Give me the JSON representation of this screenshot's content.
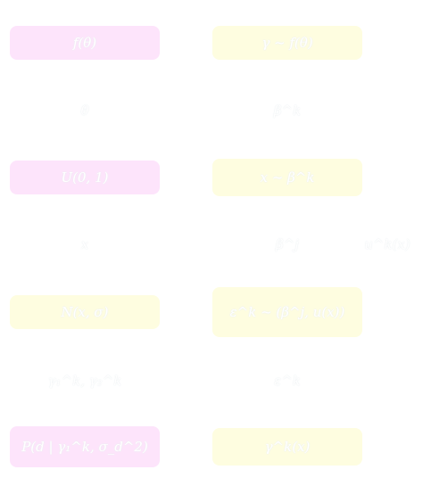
{
  "nodes": [
    {
      "id": "f-theta",
      "text": "f(θ)",
      "fill": "pink"
    },
    {
      "id": "gamma-f-theta",
      "text": "γ ~ f(θ)",
      "fill": "yellow"
    },
    {
      "id": "theta",
      "text": "θ",
      "fill": "none"
    },
    {
      "id": "beta-k",
      "text": "β^k",
      "fill": "none"
    },
    {
      "id": "uniform",
      "text": "U(0, 1)",
      "fill": "pink"
    },
    {
      "id": "x-beta-k",
      "text": "x ~ β^k",
      "fill": "yellow"
    },
    {
      "id": "x",
      "text": "x",
      "fill": "none"
    },
    {
      "id": "beta-j",
      "text": "β^j",
      "fill": "none"
    },
    {
      "id": "u-k-x",
      "text": "u^k(x)",
      "fill": "none"
    },
    {
      "id": "n-x-sigma",
      "text": "N(x, σ)",
      "fill": "yellow"
    },
    {
      "id": "epsilon-expr",
      "text": "ε^k ~ (β^j, u(x))",
      "fill": "yellow"
    },
    {
      "id": "gamma-pair",
      "text": "γ₁^k, γ₂^k",
      "fill": "none"
    },
    {
      "id": "epsilon-k",
      "text": "ε^k",
      "fill": "none"
    },
    {
      "id": "posterior",
      "text": "P(d | γ₁^k, σ_d^2)",
      "fill": "pink"
    },
    {
      "id": "gamma-k-x",
      "text": "γ^k(x)",
      "fill": "yellow"
    }
  ],
  "colors": {
    "pink": "#fde4fb",
    "yellow": "#fefde0",
    "background": "#ffffff",
    "text": "#ffffff"
  }
}
